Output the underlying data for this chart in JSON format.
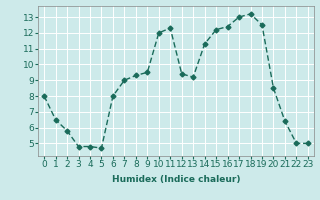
{
  "xlabel": "Humidex (Indice chaleur)",
  "ylabel": "",
  "x": [
    0,
    1,
    2,
    3,
    4,
    5,
    6,
    7,
    8,
    9,
    10,
    11,
    12,
    13,
    14,
    15,
    16,
    17,
    18,
    19,
    20,
    21,
    22,
    23
  ],
  "y": [
    8,
    6.5,
    5.8,
    4.8,
    4.8,
    4.7,
    8.0,
    9.0,
    9.3,
    9.5,
    12.0,
    12.3,
    9.4,
    9.2,
    11.3,
    12.2,
    12.4,
    13.0,
    13.2,
    12.5,
    8.5,
    6.4,
    5.0,
    5.0
  ],
  "line_color": "#1a6b5a",
  "bg_color": "#cdeaea",
  "grid_color": "#ffffff",
  "tick_label_color": "#1a6b5a",
  "xlabel_color": "#1a6b5a",
  "yticks": [
    5,
    6,
    7,
    8,
    9,
    10,
    11,
    12,
    13
  ],
  "marker_size": 2.5,
  "line_width": 1.0,
  "label_fontsize": 6.5,
  "tick_fontsize": 6.5
}
